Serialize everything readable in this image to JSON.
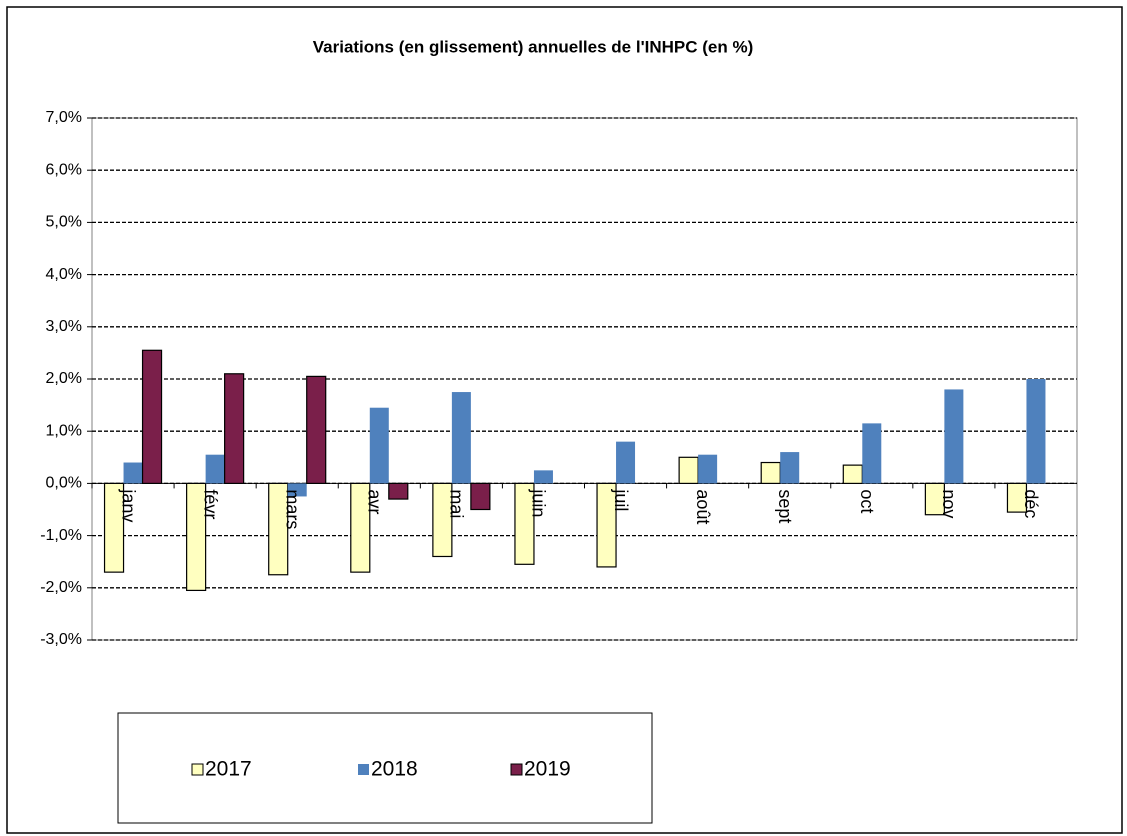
{
  "chart_data": {
    "type": "bar",
    "title": "Variations (en glissement) annuelles de l'INHPC  (en %)",
    "categories": [
      "janv",
      "févr",
      "mars",
      "avr",
      "mai",
      "juin",
      "juil",
      "août",
      "sept",
      "oct",
      "nov",
      "déc"
    ],
    "series": [
      {
        "name": "2017",
        "color": "#ffffc0",
        "outline": true,
        "values": [
          -1.7,
          -2.05,
          -1.75,
          -1.7,
          -1.4,
          -1.55,
          -1.6,
          0.5,
          0.4,
          0.35,
          -0.6,
          -0.55
        ]
      },
      {
        "name": "2018",
        "color": "#4f81bd",
        "outline": false,
        "values": [
          0.4,
          0.55,
          -0.25,
          1.45,
          1.75,
          0.25,
          0.8,
          0.55,
          0.6,
          1.15,
          1.8,
          2.0
        ]
      },
      {
        "name": "2019",
        "color": "#7a1f4a",
        "outline": true,
        "values": [
          2.55,
          2.1,
          2.05,
          -0.3,
          -0.5,
          null,
          null,
          null,
          null,
          null,
          null,
          null
        ]
      }
    ],
    "ylim": [
      -3,
      7
    ],
    "yticks": [
      {
        "value": -3,
        "label": "-3,0%"
      },
      {
        "value": -2,
        "label": "-2,0%"
      },
      {
        "value": -1,
        "label": "-1,0%"
      },
      {
        "value": 0,
        "label": "0,0%"
      },
      {
        "value": 1,
        "label": "1,0%"
      },
      {
        "value": 2,
        "label": "2,0%"
      },
      {
        "value": 3,
        "label": "3,0%"
      },
      {
        "value": 4,
        "label": "4,0%"
      },
      {
        "value": 5,
        "label": "5,0%"
      },
      {
        "value": 6,
        "label": "6,0%"
      },
      {
        "value": 7,
        "label": "7,0%"
      }
    ],
    "grid": true,
    "legend": "bottom"
  }
}
